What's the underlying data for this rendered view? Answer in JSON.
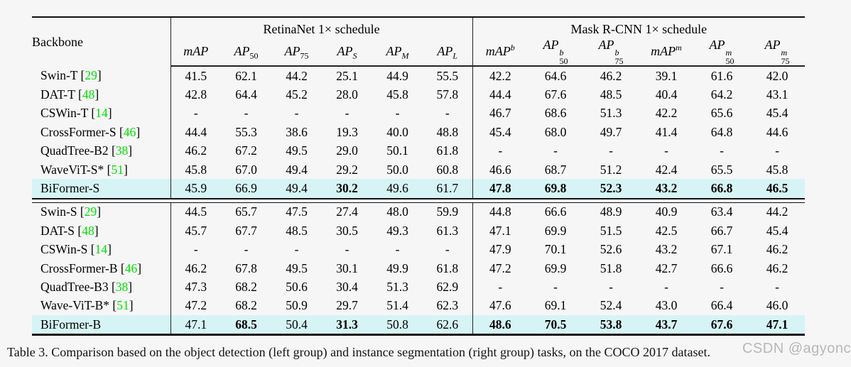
{
  "table": {
    "corner": "Backbone",
    "groups": [
      {
        "title": "RetinaNet 1× schedule"
      },
      {
        "title": "Mask R-CNN 1× schedule"
      }
    ],
    "columns": [
      {
        "text": "mAP"
      },
      {
        "text": "AP",
        "sub": "50"
      },
      {
        "text": "AP",
        "sub": "75"
      },
      {
        "text": "AP",
        "sub": "S"
      },
      {
        "text": "AP",
        "sub": "M"
      },
      {
        "text": "AP",
        "sub": "L"
      },
      {
        "text": "mAP",
        "sup": "b"
      },
      {
        "text": "AP",
        "sub": "50",
        "sup": "b"
      },
      {
        "text": "AP",
        "sub": "75",
        "sup": "b"
      },
      {
        "text": "mAP",
        "sup": "m"
      },
      {
        "text": "AP",
        "sub": "50",
        "sup": "m"
      },
      {
        "text": "AP",
        "sub": "75",
        "sup": "m"
      }
    ],
    "sections": [
      {
        "rows": [
          {
            "name": "Swin-T",
            "cite": "29",
            "highlight": false,
            "bold": [],
            "values": [
              "41.5",
              "62.1",
              "44.2",
              "25.1",
              "44.9",
              "55.5",
              "42.2",
              "64.6",
              "46.2",
              "39.1",
              "61.6",
              "42.0"
            ]
          },
          {
            "name": "DAT-T",
            "cite": "48",
            "highlight": false,
            "bold": [],
            "values": [
              "42.8",
              "64.4",
              "45.2",
              "28.0",
              "45.8",
              "57.8",
              "44.4",
              "67.6",
              "48.5",
              "40.4",
              "64.2",
              "43.1"
            ]
          },
          {
            "name": "CSWin-T",
            "cite": "14",
            "highlight": false,
            "bold": [],
            "values": [
              "-",
              "-",
              "-",
              "-",
              "-",
              "-",
              "46.7",
              "68.6",
              "51.3",
              "42.2",
              "65.6",
              "45.4"
            ]
          },
          {
            "name": "CrossFormer-S",
            "cite": "46",
            "highlight": false,
            "bold": [],
            "values": [
              "44.4",
              "55.3",
              "38.6",
              "19.3",
              "40.0",
              "48.8",
              "45.4",
              "68.0",
              "49.7",
              "41.4",
              "64.8",
              "44.6"
            ]
          },
          {
            "name": "QuadTree-B2",
            "cite": "38",
            "highlight": false,
            "bold": [],
            "values": [
              "46.2",
              "67.2",
              "49.5",
              "29.0",
              "50.1",
              "61.8",
              "-",
              "-",
              "-",
              "-",
              "-",
              "-"
            ]
          },
          {
            "name": "WaveViT-S*",
            "cite": "51",
            "highlight": false,
            "bold": [],
            "values": [
              "45.8",
              "67.0",
              "49.4",
              "29.2",
              "50.0",
              "60.8",
              "46.6",
              "68.7",
              "51.2",
              "42.4",
              "65.5",
              "45.8"
            ]
          },
          {
            "name": "BiFormer-S",
            "cite": null,
            "highlight": true,
            "bold": [
              3,
              6,
              7,
              8,
              9,
              10,
              11
            ],
            "values": [
              "45.9",
              "66.9",
              "49.4",
              "30.2",
              "49.6",
              "61.7",
              "47.8",
              "69.8",
              "52.3",
              "43.2",
              "66.8",
              "46.5"
            ]
          }
        ]
      },
      {
        "rows": [
          {
            "name": "Swin-S",
            "cite": "29",
            "highlight": false,
            "bold": [],
            "values": [
              "44.5",
              "65.7",
              "47.5",
              "27.4",
              "48.0",
              "59.9",
              "44.8",
              "66.6",
              "48.9",
              "40.9",
              "63.4",
              "44.2"
            ]
          },
          {
            "name": "DAT-S",
            "cite": "48",
            "highlight": false,
            "bold": [],
            "values": [
              "45.7",
              "67.7",
              "48.5",
              "30.5",
              "49.3",
              "61.3",
              "47.1",
              "69.9",
              "51.5",
              "42.5",
              "66.7",
              "45.4"
            ]
          },
          {
            "name": "CSWin-S",
            "cite": "14",
            "highlight": false,
            "bold": [],
            "values": [
              "-",
              "-",
              "-",
              "-",
              "-",
              "-",
              "47.9",
              "70.1",
              "52.6",
              "43.2",
              "67.1",
              "46.2"
            ]
          },
          {
            "name": "CrossFormer-B",
            "cite": "46",
            "highlight": false,
            "bold": [],
            "values": [
              "46.2",
              "67.8",
              "49.5",
              "30.1",
              "49.9",
              "61.8",
              "47.2",
              "69.9",
              "51.8",
              "42.7",
              "66.6",
              "46.2"
            ]
          },
          {
            "name": "QuadTree-B3",
            "cite": "38",
            "highlight": false,
            "bold": [],
            "values": [
              "47.3",
              "68.2",
              "50.6",
              "30.4",
              "51.3",
              "62.9",
              "-",
              "-",
              "-",
              "-",
              "-",
              "-"
            ]
          },
          {
            "name": "Wave-ViT-B*",
            "cite": "51",
            "highlight": false,
            "bold": [],
            "values": [
              "47.2",
              "68.2",
              "50.9",
              "29.7",
              "51.4",
              "62.3",
              "47.6",
              "69.1",
              "52.4",
              "43.0",
              "66.4",
              "46.0"
            ]
          },
          {
            "name": "BiFormer-B",
            "cite": null,
            "highlight": true,
            "bold": [
              1,
              3,
              6,
              7,
              8,
              9,
              10,
              11
            ],
            "values": [
              "47.1",
              "68.5",
              "50.4",
              "31.3",
              "50.8",
              "62.6",
              "48.6",
              "70.5",
              "53.8",
              "43.7",
              "67.6",
              "47.1"
            ]
          }
        ]
      }
    ]
  },
  "caption": "Table 3. Comparison based on the object detection (left group) and instance segmentation (right group) tasks, on the COCO 2017 dataset.",
  "watermark": "CSDN @agyonc",
  "colors": {
    "highlight_row": "#d6f4f5",
    "citation_green": "#00e000",
    "page_background": "#f6f6f6",
    "rule": "#111111"
  }
}
